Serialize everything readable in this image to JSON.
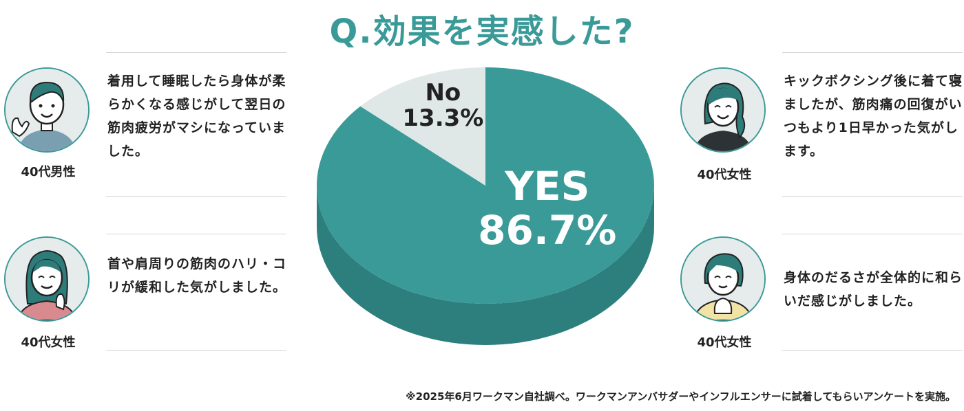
{
  "title": "Q.効果を実感した?",
  "chart_data": {
    "type": "pie",
    "title": "Q.効果を実感した?",
    "categories": [
      "YES",
      "No"
    ],
    "values": [
      86.7,
      13.3
    ],
    "labels": [
      "86.7%",
      "13.3%"
    ],
    "colors": [
      "#3a9a98",
      "#dfe7e7"
    ],
    "side_colors": [
      "#2c7f7d",
      "#c8d3d3"
    ],
    "label_colors": [
      "#ffffff",
      "#222222"
    ]
  },
  "testimonials": [
    {
      "demographic": "40代男性",
      "comment": "着用して睡眠したら身体が柔らかくなる感じがして翌日の筋肉疲労がマシになっていました。",
      "shirt_color": "#7a9fb1"
    },
    {
      "demographic": "40代女性",
      "comment": "首や肩周りの筋肉のハリ・コリが緩和した気がしました。",
      "shirt_color": "#d98a8f"
    },
    {
      "demographic": "40代女性",
      "comment": "キックボクシング後に着て寝ましたが、筋肉痛の回復がいつもより1日早かった気がします。",
      "shirt_color": "#2c3236"
    },
    {
      "demographic": "40代女性",
      "comment": "身体のだるさが全体的に和らいだ感じがしました。",
      "shirt_color": "#f1e3a6"
    }
  ],
  "footnote": "※2025年6月ワークマン自社調べ。ワークマンアンバサダーやインフルエンサーに試着してもらいアンケートを実施。"
}
